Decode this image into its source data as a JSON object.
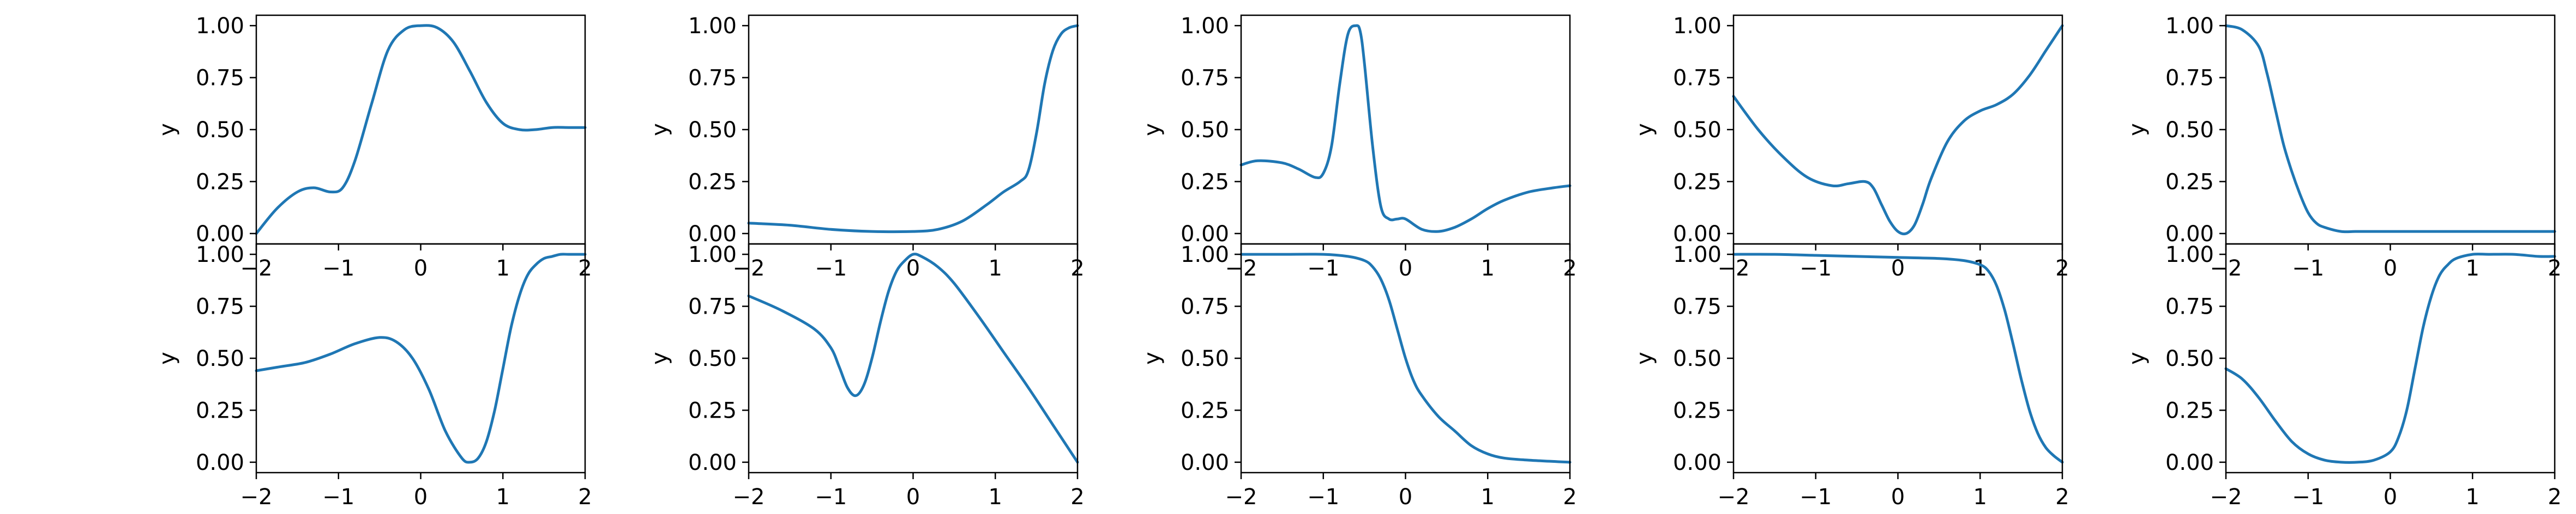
{
  "chart_data": [
    {
      "type": "line",
      "row": 0,
      "col": 0,
      "xlim": [
        -2,
        2
      ],
      "ylim": [
        -0.05,
        1.05
      ],
      "ylabel": "y",
      "xticks": [
        "−2",
        "−1",
        "0",
        "1",
        "2"
      ],
      "yticks": [
        "0.00",
        "0.25",
        "0.50",
        "0.75",
        "1.00"
      ],
      "color": "#1f77b4",
      "series": [
        {
          "x": [
            -2,
            -1.75,
            -1.5,
            -1.3,
            -1.1,
            -0.95,
            -0.8,
            -0.6,
            -0.4,
            -0.2,
            0,
            0.2,
            0.4,
            0.6,
            0.8,
            1.0,
            1.2,
            1.4,
            1.6,
            1.8,
            2
          ],
          "y": [
            0.0,
            0.12,
            0.2,
            0.22,
            0.2,
            0.22,
            0.35,
            0.62,
            0.88,
            0.98,
            1.0,
            0.99,
            0.92,
            0.78,
            0.63,
            0.53,
            0.5,
            0.5,
            0.51,
            0.51,
            0.51
          ]
        }
      ]
    },
    {
      "type": "line",
      "row": 0,
      "col": 1,
      "xlim": [
        -2,
        2
      ],
      "ylim": [
        -0.05,
        1.05
      ],
      "ylabel": "y",
      "xticks": [
        "−2",
        "−1",
        "0",
        "1",
        "2"
      ],
      "yticks": [
        "0.00",
        "0.25",
        "0.50",
        "0.75",
        "1.00"
      ],
      "color": "#1f77b4",
      "series": [
        {
          "x": [
            -2,
            -1.5,
            -1,
            -0.5,
            0,
            0.3,
            0.6,
            0.9,
            1.1,
            1.3,
            1.4,
            1.5,
            1.6,
            1.7,
            1.8,
            1.9,
            2
          ],
          "y": [
            0.05,
            0.04,
            0.02,
            0.01,
            0.01,
            0.02,
            0.06,
            0.14,
            0.2,
            0.25,
            0.3,
            0.48,
            0.72,
            0.88,
            0.96,
            0.99,
            1.0
          ]
        }
      ]
    },
    {
      "type": "line",
      "row": 0,
      "col": 2,
      "xlim": [
        -2,
        2
      ],
      "ylim": [
        -0.05,
        1.05
      ],
      "ylabel": "y",
      "xticks": [
        "−2",
        "−1",
        "0",
        "1",
        "2"
      ],
      "yticks": [
        "0.00",
        "0.25",
        "0.50",
        "0.75",
        "1.00"
      ],
      "color": "#1f77b4",
      "series": [
        {
          "x": [
            -2,
            -1.8,
            -1.5,
            -1.3,
            -1.1,
            -1.0,
            -0.9,
            -0.8,
            -0.7,
            -0.6,
            -0.55,
            -0.5,
            -0.4,
            -0.3,
            -0.2,
            -0.1,
            0,
            0.2,
            0.4,
            0.6,
            0.8,
            1.0,
            1.2,
            1.5,
            1.8,
            2
          ],
          "y": [
            0.33,
            0.35,
            0.34,
            0.31,
            0.27,
            0.29,
            0.42,
            0.72,
            0.96,
            1.0,
            0.97,
            0.82,
            0.42,
            0.13,
            0.07,
            0.07,
            0.07,
            0.02,
            0.01,
            0.03,
            0.07,
            0.12,
            0.16,
            0.2,
            0.22,
            0.23
          ]
        }
      ]
    },
    {
      "type": "line",
      "row": 0,
      "col": 3,
      "xlim": [
        -2,
        2
      ],
      "ylim": [
        -0.05,
        1.05
      ],
      "ylabel": "y",
      "xticks": [
        "−2",
        "−1",
        "0",
        "1",
        "2"
      ],
      "yticks": [
        "0.00",
        "0.25",
        "0.50",
        "0.75",
        "1.00"
      ],
      "color": "#1f77b4",
      "series": [
        {
          "x": [
            -2,
            -1.7,
            -1.4,
            -1.1,
            -0.8,
            -0.6,
            -0.4,
            -0.3,
            -0.2,
            -0.1,
            0,
            0.1,
            0.2,
            0.3,
            0.4,
            0.6,
            0.8,
            1.0,
            1.2,
            1.4,
            1.6,
            1.8,
            2
          ],
          "y": [
            0.66,
            0.5,
            0.37,
            0.27,
            0.23,
            0.24,
            0.25,
            0.22,
            0.14,
            0.06,
            0.01,
            0.0,
            0.04,
            0.14,
            0.26,
            0.44,
            0.54,
            0.59,
            0.62,
            0.67,
            0.76,
            0.88,
            1.0
          ]
        }
      ]
    },
    {
      "type": "line",
      "row": 0,
      "col": 4,
      "xlim": [
        -2,
        2
      ],
      "ylim": [
        -0.05,
        1.05
      ],
      "ylabel": "y",
      "xticks": [
        "−2",
        "−1",
        "0",
        "1",
        "2"
      ],
      "yticks": [
        "0.00",
        "0.25",
        "0.50",
        "0.75",
        "1.00"
      ],
      "color": "#1f77b4",
      "series": [
        {
          "x": [
            -2,
            -1.8,
            -1.6,
            -1.5,
            -1.4,
            -1.3,
            -1.2,
            -1.1,
            -1.0,
            -0.9,
            -0.8,
            -0.6,
            -0.4,
            0,
            0.5,
            1,
            1.5,
            2
          ],
          "y": [
            1.0,
            0.98,
            0.9,
            0.77,
            0.6,
            0.43,
            0.3,
            0.19,
            0.1,
            0.05,
            0.03,
            0.01,
            0.01,
            0.01,
            0.01,
            0.01,
            0.01,
            0.01
          ]
        }
      ]
    },
    {
      "type": "line",
      "row": 1,
      "col": 0,
      "xlim": [
        -2,
        2
      ],
      "ylim": [
        -0.05,
        1.05
      ],
      "ylabel": "y",
      "xticks": [
        "−2",
        "−1",
        "0",
        "1",
        "2"
      ],
      "yticks": [
        "0.00",
        "0.25",
        "0.50",
        "0.75",
        "1.00"
      ],
      "color": "#1f77b4",
      "series": [
        {
          "x": [
            -2,
            -1.7,
            -1.4,
            -1.1,
            -0.8,
            -0.5,
            -0.3,
            -0.1,
            0.1,
            0.3,
            0.5,
            0.6,
            0.7,
            0.8,
            0.9,
            1.0,
            1.1,
            1.2,
            1.3,
            1.4,
            1.5,
            1.6,
            1.7,
            1.8,
            2
          ],
          "y": [
            0.44,
            0.46,
            0.48,
            0.52,
            0.57,
            0.6,
            0.58,
            0.5,
            0.35,
            0.15,
            0.02,
            0.0,
            0.02,
            0.1,
            0.25,
            0.45,
            0.65,
            0.8,
            0.9,
            0.95,
            0.98,
            0.99,
            1.0,
            1.0,
            1.0
          ]
        }
      ]
    },
    {
      "type": "line",
      "row": 1,
      "col": 1,
      "xlim": [
        -2,
        2
      ],
      "ylim": [
        -0.05,
        1.05
      ],
      "ylabel": "y",
      "xticks": [
        "−2",
        "−1",
        "0",
        "1",
        "2"
      ],
      "yticks": [
        "0.00",
        "0.25",
        "0.50",
        "0.75",
        "1.00"
      ],
      "color": "#1f77b4",
      "series": [
        {
          "x": [
            -2,
            -1.6,
            -1.2,
            -1.0,
            -0.9,
            -0.8,
            -0.7,
            -0.6,
            -0.5,
            -0.4,
            -0.3,
            -0.2,
            -0.1,
            0,
            0.1,
            0.3,
            0.5,
            0.8,
            1.1,
            1.4,
            1.7,
            2
          ],
          "y": [
            0.8,
            0.73,
            0.64,
            0.55,
            0.46,
            0.36,
            0.32,
            0.37,
            0.5,
            0.67,
            0.82,
            0.92,
            0.97,
            1.0,
            0.99,
            0.94,
            0.86,
            0.7,
            0.53,
            0.36,
            0.18,
            0.0
          ]
        }
      ]
    },
    {
      "type": "line",
      "row": 1,
      "col": 2,
      "xlim": [
        -2,
        2
      ],
      "ylim": [
        -0.05,
        1.05
      ],
      "ylabel": "y",
      "xticks": [
        "−2",
        "−1",
        "0",
        "1",
        "2"
      ],
      "yticks": [
        "0.00",
        "0.25",
        "0.50",
        "0.75",
        "1.00"
      ],
      "color": "#1f77b4",
      "series": [
        {
          "x": [
            -2,
            -1.5,
            -1.0,
            -0.7,
            -0.5,
            -0.4,
            -0.3,
            -0.2,
            -0.1,
            0,
            0.1,
            0.2,
            0.4,
            0.6,
            0.8,
            1.0,
            1.2,
            1.5,
            2
          ],
          "y": [
            1.0,
            1.0,
            1.0,
            0.99,
            0.97,
            0.94,
            0.88,
            0.78,
            0.64,
            0.5,
            0.39,
            0.32,
            0.22,
            0.15,
            0.08,
            0.04,
            0.02,
            0.01,
            0.0
          ]
        }
      ]
    },
    {
      "type": "line",
      "row": 1,
      "col": 3,
      "xlim": [
        -2,
        2
      ],
      "ylim": [
        -0.05,
        1.05
      ],
      "ylabel": "y",
      "xticks": [
        "−2",
        "−1",
        "0",
        "1",
        "2"
      ],
      "yticks": [
        "0.00",
        "0.25",
        "0.50",
        "0.75",
        "1.00"
      ],
      "color": "#1f77b4",
      "series": [
        {
          "x": [
            -2,
            -1.5,
            -1.0,
            -0.5,
            0,
            0.5,
            0.8,
            1.0,
            1.1,
            1.2,
            1.3,
            1.4,
            1.5,
            1.6,
            1.7,
            1.8,
            1.9,
            2
          ],
          "y": [
            1.0,
            1.0,
            0.995,
            0.99,
            0.985,
            0.98,
            0.97,
            0.95,
            0.92,
            0.85,
            0.73,
            0.57,
            0.4,
            0.25,
            0.14,
            0.07,
            0.03,
            0.0
          ]
        }
      ]
    },
    {
      "type": "line",
      "row": 1,
      "col": 4,
      "xlim": [
        -2,
        2
      ],
      "ylim": [
        -0.05,
        1.05
      ],
      "ylabel": "y",
      "xticks": [
        "−2",
        "−1",
        "0",
        "1",
        "2"
      ],
      "yticks": [
        "0.00",
        "0.25",
        "0.50",
        "0.75",
        "1.00"
      ],
      "color": "#1f77b4",
      "series": [
        {
          "x": [
            -2,
            -1.8,
            -1.6,
            -1.4,
            -1.2,
            -1.0,
            -0.8,
            -0.6,
            -0.4,
            -0.2,
            0,
            0.1,
            0.2,
            0.3,
            0.4,
            0.5,
            0.6,
            0.7,
            0.8,
            1.0,
            1.2,
            1.5,
            1.8,
            2
          ],
          "y": [
            0.45,
            0.4,
            0.31,
            0.2,
            0.1,
            0.04,
            0.01,
            0.0,
            0.0,
            0.01,
            0.05,
            0.12,
            0.25,
            0.45,
            0.65,
            0.8,
            0.9,
            0.95,
            0.98,
            1.0,
            1.0,
            1.0,
            0.99,
            0.99
          ]
        }
      ]
    }
  ]
}
